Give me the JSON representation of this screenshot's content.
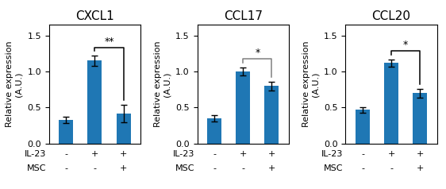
{
  "chart_data": [
    {
      "type": "bar",
      "title": "CXCL1",
      "y_label": "Relative expression\n(A.U.)",
      "values": [
        0.33,
        1.15,
        0.42
      ],
      "errors": [
        0.04,
        0.07,
        0.12
      ],
      "ylim": [
        0,
        1.65
      ],
      "yticks": [
        0.0,
        0.5,
        1.0,
        1.5
      ],
      "condition_rows": [
        {
          "label": "IL-23",
          "marks": [
            "-",
            "+",
            "+"
          ]
        },
        {
          "label": "MSC",
          "marks": [
            "-",
            "-",
            "+"
          ]
        }
      ],
      "annotations": [
        {
          "text": "**",
          "between": [
            1,
            2
          ],
          "color": "black"
        }
      ]
    },
    {
      "type": "bar",
      "title": "CCL17",
      "y_label": "Relative expression\n(A.U.)",
      "values": [
        0.35,
        1.0,
        0.8
      ],
      "errors": [
        0.04,
        0.06,
        0.06
      ],
      "ylim": [
        0,
        1.65
      ],
      "yticks": [
        0.0,
        0.5,
        1.0,
        1.5
      ],
      "condition_rows": [
        {
          "label": "IL-23",
          "marks": [
            "-",
            "+",
            "+"
          ]
        },
        {
          "label": "MSC",
          "marks": [
            "-",
            "-",
            "+"
          ]
        }
      ],
      "annotations": [
        {
          "text": "*",
          "between": [
            1,
            2
          ],
          "color": "gray"
        }
      ]
    },
    {
      "type": "bar",
      "title": "CCL20",
      "y_label": "Relative expression\n(A.U.)",
      "values": [
        0.47,
        1.12,
        0.7
      ],
      "errors": [
        0.04,
        0.05,
        0.06
      ],
      "ylim": [
        0,
        1.65
      ],
      "yticks": [
        0.0,
        0.5,
        1.0,
        1.5
      ],
      "condition_rows": [
        {
          "label": "IL-23",
          "marks": [
            "-",
            "+",
            "+"
          ]
        },
        {
          "label": "MSC",
          "marks": [
            "-",
            "-",
            "+"
          ]
        }
      ],
      "annotations": [
        {
          "text": "*",
          "between": [
            1,
            2
          ],
          "color": "black"
        }
      ]
    }
  ]
}
